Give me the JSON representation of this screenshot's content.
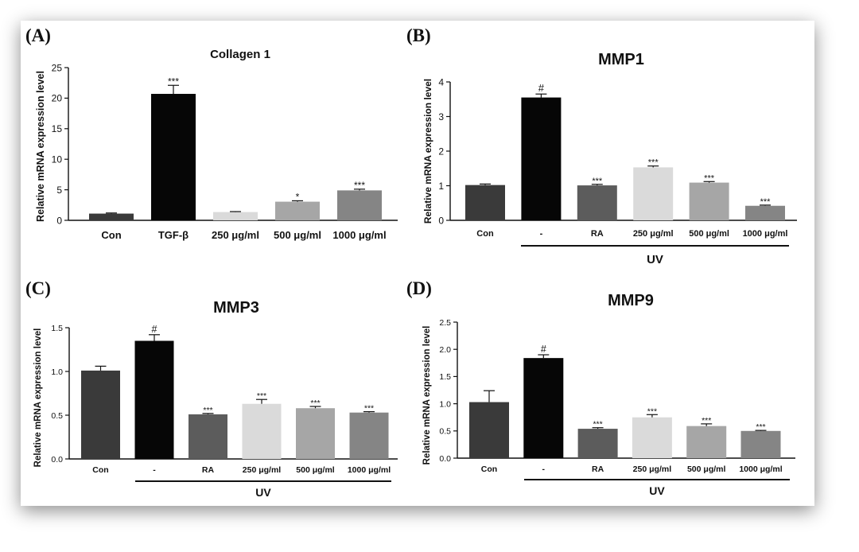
{
  "figure": {
    "colors": {
      "con": "#3a3a3a",
      "black": "#060606",
      "ra": "#5c5c5c",
      "light": "#dadada",
      "mid": "#a6a6a6",
      "dark_gray": "#858585"
    }
  },
  "chart_data": [
    {
      "panel_label": "(A)",
      "type": "bar",
      "title": "Collagen 1",
      "ylabel": "Relative mRNA expression level",
      "xlabel": "",
      "ylim": [
        0,
        25
      ],
      "yticks": [
        "0",
        "5",
        "10",
        "15",
        "20",
        "25"
      ],
      "categories": [
        "Con",
        "TGF-β",
        "250 μg/ml",
        "500 μg/ml",
        "1000 μg/ml"
      ],
      "values": [
        1.1,
        20.7,
        1.35,
        3.05,
        4.9
      ],
      "errors": [
        0.1,
        1.4,
        0.08,
        0.15,
        0.2
      ],
      "bar_colors": [
        "#3a3a3a",
        "#060606",
        "#dadada",
        "#a6a6a6",
        "#858585"
      ],
      "annotations": [
        "",
        "***",
        "",
        "*",
        "***"
      ],
      "group_label": ""
    },
    {
      "panel_label": "(B)",
      "type": "bar",
      "title": "MMP1",
      "ylabel": "Relative mRNA expression level",
      "xlabel": "",
      "ylim": [
        0,
        4
      ],
      "yticks": [
        "0",
        "1",
        "2",
        "3",
        "4"
      ],
      "categories": [
        "Con",
        "-",
        "RA",
        "250 μg/ml",
        "500 μg/ml",
        "1000 μg/ml"
      ],
      "values": [
        1.02,
        3.55,
        1.01,
        1.53,
        1.09,
        0.42
      ],
      "errors": [
        0.03,
        0.1,
        0.03,
        0.04,
        0.03,
        0.02
      ],
      "bar_colors": [
        "#3a3a3a",
        "#060606",
        "#5c5c5c",
        "#dadada",
        "#a6a6a6",
        "#858585"
      ],
      "annotations": [
        "",
        "#",
        "***",
        "***",
        "***",
        "***"
      ],
      "group_label": "UV"
    },
    {
      "panel_label": "(C)",
      "type": "bar",
      "title": "MMP3",
      "ylabel": "Relative mRNA expression level",
      "xlabel": "",
      "ylim": [
        0,
        1.5
      ],
      "yticks": [
        "0.0",
        "0.5",
        "1.0",
        "1.5"
      ],
      "categories": [
        "Con",
        "-",
        "RA",
        "250 μg/ml",
        "500 μg/ml",
        "1000 μg/ml"
      ],
      "values": [
        1.01,
        1.35,
        0.51,
        0.63,
        0.58,
        0.53
      ],
      "errors": [
        0.05,
        0.07,
        0.01,
        0.05,
        0.02,
        0.01
      ],
      "bar_colors": [
        "#3a3a3a",
        "#060606",
        "#5c5c5c",
        "#dadada",
        "#a6a6a6",
        "#858585"
      ],
      "annotations": [
        "",
        "#",
        "***",
        "***",
        "***",
        "***"
      ],
      "group_label": "UV"
    },
    {
      "panel_label": "(D)",
      "type": "bar",
      "title": "MMP9",
      "ylabel": "Relative mRNA expression level",
      "xlabel": "",
      "ylim": [
        0,
        2.5
      ],
      "yticks": [
        "0.0",
        "0.5",
        "1.0",
        "1.5",
        "2.0",
        "2.5"
      ],
      "categories": [
        "Con",
        "-",
        "RA",
        "250 μg/ml",
        "500 μg/ml",
        "1000 μg/ml"
      ],
      "values": [
        1.03,
        1.84,
        0.54,
        0.75,
        0.59,
        0.5
      ],
      "errors": [
        0.21,
        0.06,
        0.02,
        0.05,
        0.04,
        0.01
      ],
      "bar_colors": [
        "#3a3a3a",
        "#060606",
        "#5c5c5c",
        "#dadada",
        "#a6a6a6",
        "#858585"
      ],
      "annotations": [
        "",
        "#",
        "***",
        "***",
        "***",
        "***"
      ],
      "group_label": "UV"
    }
  ]
}
